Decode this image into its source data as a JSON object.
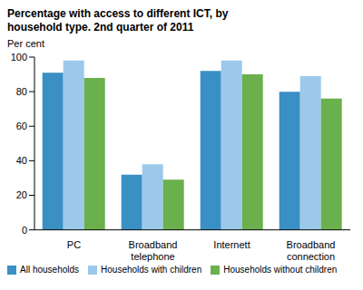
{
  "chart_data": {
    "type": "bar",
    "title": "Percentage with access to different ICT, by household type. 2nd quarter of 2011",
    "y_label": "Per cent",
    "categories": [
      "PC",
      "Broadband telephone",
      "Internett",
      "Broadband connection"
    ],
    "series": [
      {
        "name": "All households",
        "color": "#3a8fc4",
        "values": [
          91,
          32,
          92,
          80
        ]
      },
      {
        "name": "Households with children",
        "color": "#9cc9ea",
        "values": [
          98,
          38,
          98,
          89
        ]
      },
      {
        "name": "Households without children",
        "color": "#6ab04c",
        "values": [
          88,
          29,
          90,
          76
        ]
      }
    ],
    "ylim": [
      0,
      100
    ],
    "yticks": [
      0,
      20,
      40,
      60,
      80,
      100
    ],
    "grid": false,
    "legend": "bottom"
  }
}
